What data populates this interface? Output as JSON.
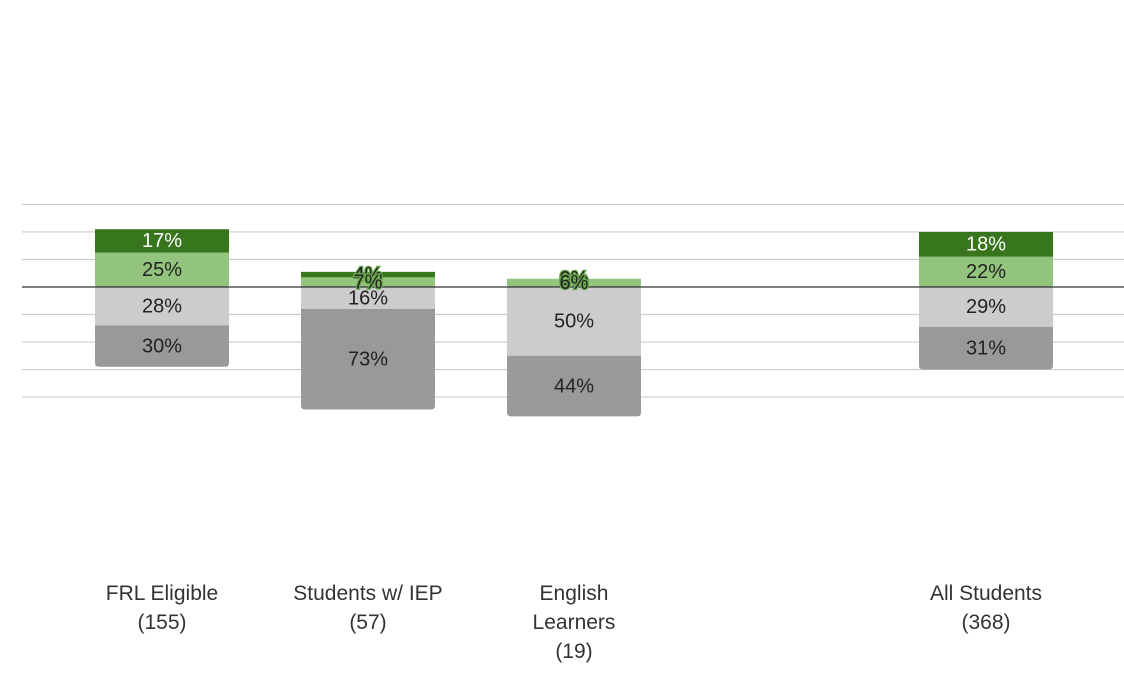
{
  "chart_data": {
    "type": "bar",
    "stacked": "diverging",
    "baseline": 0,
    "ylim": [
      -80,
      60
    ],
    "grid": true,
    "legend": "none",
    "categories": [
      {
        "name": "FRL Eligible",
        "count": "(155)",
        "label_lines": [
          "FRL Eligible",
          "(155)"
        ]
      },
      {
        "name": "Students w/ IEP",
        "count": "(57)",
        "label_lines": [
          "Students w/ IEP",
          "(57)"
        ]
      },
      {
        "name": "English Learners",
        "count": "(19)",
        "label_lines": [
          "English",
          "Learners",
          "(19)"
        ]
      },
      {
        "name": "All Students",
        "count": "(368)",
        "label_lines": [
          "All Students",
          "(368)"
        ]
      }
    ],
    "gap_after_category": 2,
    "series": [
      {
        "values": [
          17,
          4,
          0,
          18
        ],
        "labels": [
          "17%",
          "4%",
          "0%",
          "18%"
        ],
        "color": "#38761d",
        "text_color": "#ffffff",
        "side": "above",
        "order": 2
      },
      {
        "values": [
          25,
          7,
          6,
          22
        ],
        "labels": [
          "25%",
          "7%",
          "6%",
          "22%"
        ],
        "color": "#93c47d",
        "text_color": "#222222",
        "side": "above",
        "order": 1
      },
      {
        "values": [
          28,
          16,
          50,
          29
        ],
        "labels": [
          "28%",
          "16%",
          "50%",
          "29%"
        ],
        "color": "#cccccc",
        "text_color": "#222222",
        "side": "below",
        "order": 1
      },
      {
        "values": [
          30,
          73,
          44,
          31
        ],
        "labels": [
          "30%",
          "73%",
          "44%",
          "31%"
        ],
        "color": "#999999",
        "text_color": "#222222",
        "side": "below",
        "order": 2
      }
    ]
  }
}
